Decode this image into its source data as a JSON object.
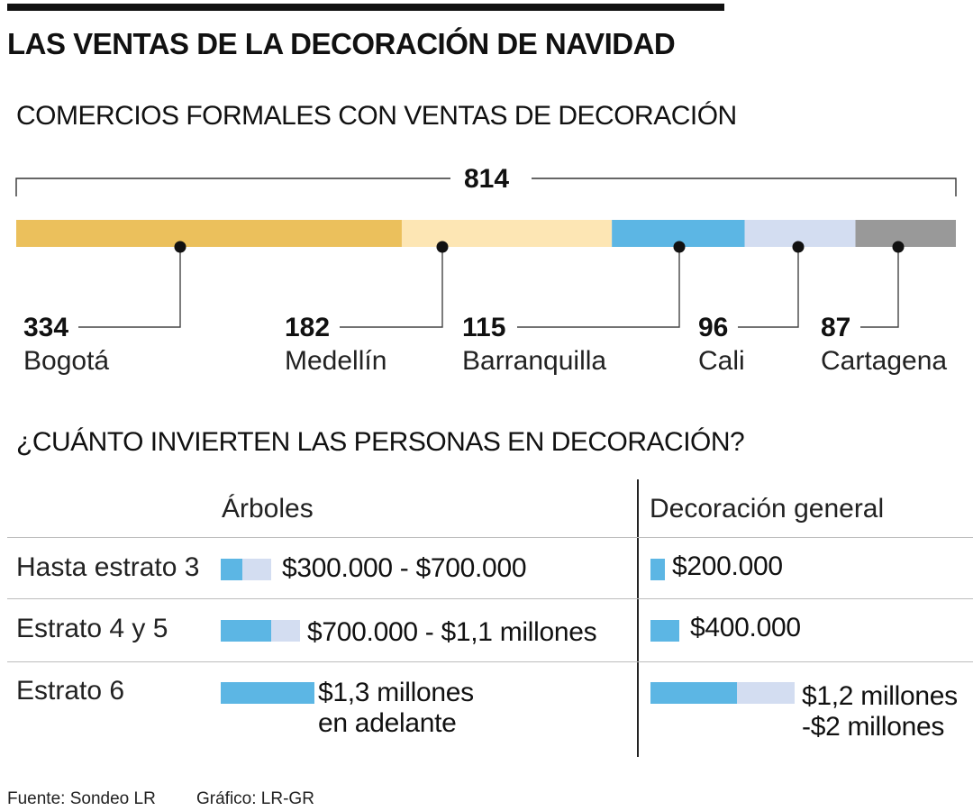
{
  "title": "LAS VENTAS DE LA DECORACIÓN DE NAVIDAD",
  "section1_title": "COMERCIOS FORMALES CON VENTAS DE DECORACIÓN",
  "section2_title": "¿CUÁNTO INVIERTEN LAS PERSONAS EN DECORACIÓN?",
  "colors": {
    "bogota": "#ebc05c",
    "medellin": "#fde6b4",
    "barranquilla": "#5cb6e4",
    "cali": "#d3ddf1",
    "cartagena": "#999999",
    "bar_low": "#5cb6e4",
    "bar_high": "#d3ddf1"
  },
  "chart_data": [
    {
      "type": "bar",
      "orientation": "stacked-horizontal",
      "title": "COMERCIOS FORMALES CON VENTAS DE DECORACIÓN",
      "total": 814,
      "total_label": "814",
      "categories": [
        "Bogotá",
        "Medellín",
        "Barranquilla",
        "Cali",
        "Cartagena"
      ],
      "values": [
        334,
        182,
        115,
        96,
        87
      ],
      "value_labels": [
        "334",
        "182",
        "115",
        "96",
        "87"
      ],
      "colors": [
        "#ebc05c",
        "#fde6b4",
        "#5cb6e4",
        "#d3ddf1",
        "#999999"
      ]
    },
    {
      "type": "table",
      "title": "¿CUÁNTO INVIERTEN LAS PERSONAS EN DECORACIÓN?",
      "columns": [
        "Árboles",
        "Decoración general"
      ],
      "rows": [
        {
          "label": "Hasta estrato 3",
          "arboles": {
            "text": "$300.000 - $700.000",
            "min": 300000,
            "max": 700000
          },
          "decoracion": {
            "text": "$200.000",
            "min": 200000,
            "max": 200000
          }
        },
        {
          "label": "Estrato 4 y 5",
          "arboles": {
            "text": "$700.000 - $1,1 millones",
            "min": 700000,
            "max": 1100000
          },
          "decoracion": {
            "text": "$400.000",
            "min": 400000,
            "max": 400000
          }
        },
        {
          "label": "Estrato 6",
          "arboles": {
            "text": "$1,3 millones\nen adelante",
            "min": 1300000,
            "max": 1300000
          },
          "decoracion": {
            "text": "$1,2 millones\n-$2 millones",
            "min": 1200000,
            "max": 2000000
          }
        }
      ]
    }
  ],
  "footer": {
    "source": "Fuente: Sondeo LR",
    "credit": "Gráfico: LR-GR"
  }
}
